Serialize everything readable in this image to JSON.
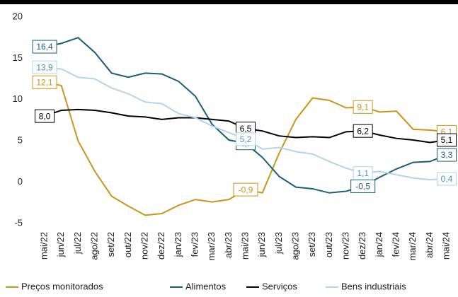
{
  "chart_data": {
    "type": "line",
    "categories": [
      "mai/22",
      "jun/22",
      "jul/22",
      "ago/22",
      "set/22",
      "out/22",
      "nov/22",
      "dez/22",
      "jan/23",
      "fev/23",
      "mar/23",
      "abr/23",
      "mai/23",
      "jun/23",
      "jul/23",
      "ago/23",
      "set/23",
      "out/23",
      "nov/23",
      "dez/23",
      "jan/24",
      "fev/24",
      "mar/24",
      "abr/24",
      "mai/24"
    ],
    "ylim": [
      -5,
      20
    ],
    "yticks": [
      -5,
      0,
      5,
      10,
      15,
      20
    ],
    "series": [
      {
        "name": "Preços monitorados",
        "color": "#c9961a",
        "values": [
          12.1,
          11.7,
          5.0,
          1.3,
          -1.7,
          -2.9,
          -4.0,
          -3.8,
          -2.8,
          -2.1,
          -2.4,
          -2.1,
          -0.9,
          -1.3,
          3.5,
          7.6,
          10.2,
          9.9,
          9.0,
          9.1,
          8.5,
          8.6,
          6.4,
          6.3,
          6.1
        ],
        "value_labels": [
          "12,1",
          null,
          null,
          null,
          null,
          null,
          null,
          null,
          null,
          null,
          null,
          null,
          "-0,9",
          null,
          null,
          null,
          null,
          null,
          null,
          "9,1",
          null,
          null,
          null,
          null,
          "6,1"
        ]
      },
      {
        "name": "Alimentos",
        "color": "#1b5e7a",
        "values": [
          16.4,
          16.8,
          17.5,
          15.7,
          13.2,
          12.7,
          13.2,
          13.1,
          12.2,
          10.4,
          7.0,
          5.1,
          4.7,
          3.0,
          0.7,
          -0.6,
          -0.8,
          -1.3,
          -1.1,
          -0.5,
          0.6,
          1.6,
          2.4,
          2.5,
          3.3
        ],
        "value_labels": [
          "16,4",
          null,
          null,
          null,
          null,
          null,
          null,
          null,
          null,
          null,
          null,
          null,
          "4,7",
          null,
          null,
          null,
          null,
          null,
          null,
          "-0,5",
          null,
          null,
          null,
          null,
          "3,3"
        ]
      },
      {
        "name": "Serviços",
        "color": "#000000",
        "values": [
          8.0,
          8.7,
          8.8,
          8.7,
          8.4,
          8.0,
          7.9,
          7.6,
          7.8,
          7.8,
          7.6,
          7.4,
          6.5,
          6.2,
          5.6,
          5.4,
          5.5,
          5.4,
          6.1,
          6.2,
          5.7,
          5.3,
          5.1,
          4.8,
          5.1
        ],
        "value_labels": [
          "8,0",
          null,
          null,
          null,
          null,
          null,
          null,
          null,
          null,
          null,
          null,
          null,
          "6,5",
          null,
          null,
          null,
          null,
          null,
          null,
          "6,2",
          null,
          null,
          null,
          null,
          "5,1"
        ]
      },
      {
        "name": "Bens industriais",
        "color": "#b3d4ea",
        "values": [
          13.9,
          13.7,
          12.7,
          12.5,
          11.4,
          10.7,
          9.7,
          9.5,
          8.3,
          7.8,
          6.8,
          6.0,
          5.2,
          4.0,
          4.2,
          3.7,
          3.4,
          2.5,
          1.7,
          1.1,
          1.3,
          0.9,
          0.5,
          0.3,
          0.4
        ],
        "value_labels": [
          "13,9",
          null,
          null,
          null,
          null,
          null,
          null,
          null,
          null,
          null,
          null,
          null,
          "5,2",
          null,
          null,
          null,
          null,
          null,
          null,
          "1,1",
          null,
          null,
          null,
          null,
          "0,4"
        ]
      }
    ]
  }
}
